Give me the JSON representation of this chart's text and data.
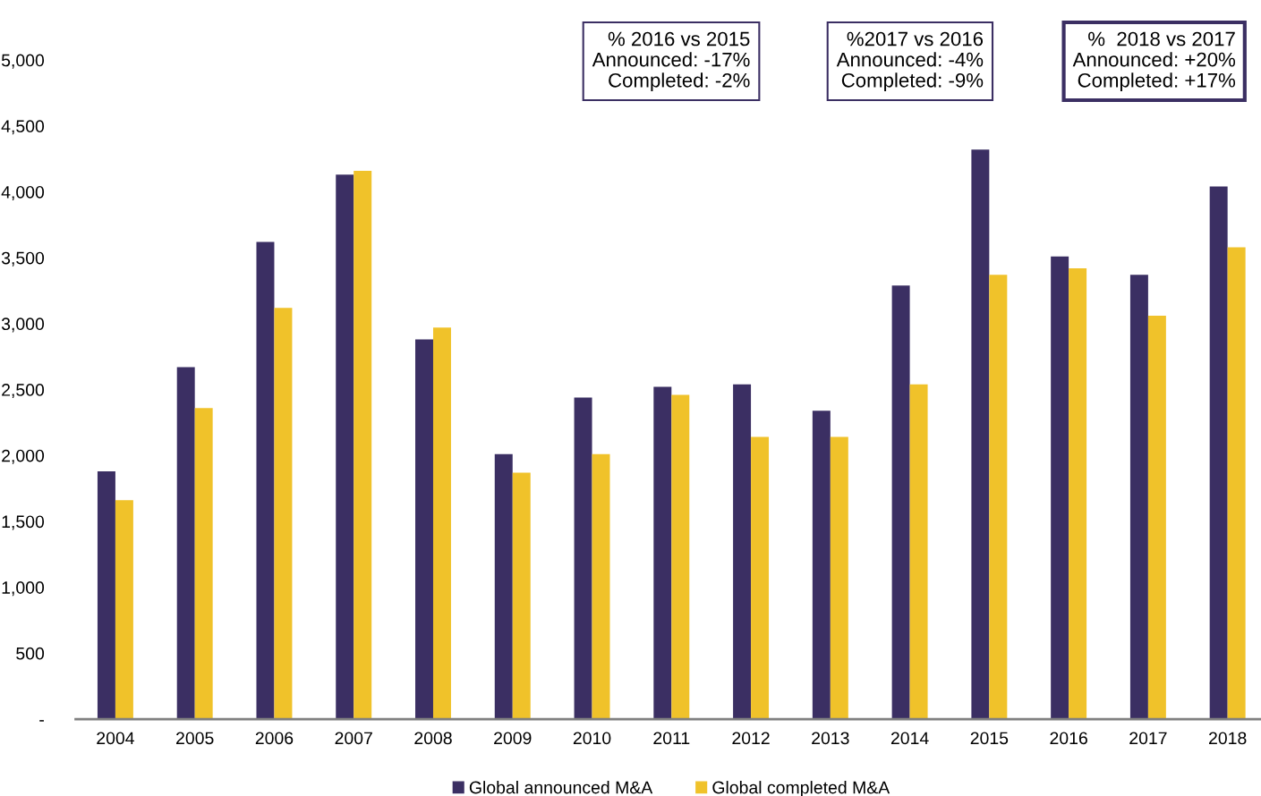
{
  "chart_data": {
    "type": "bar",
    "categories": [
      "2004",
      "2005",
      "2006",
      "2007",
      "2008",
      "2009",
      "2010",
      "2011",
      "2012",
      "2013",
      "2014",
      "2015",
      "2016",
      "2017",
      "2018"
    ],
    "series": [
      {
        "name": "Global announced M&A",
        "color": "#3b2f63",
        "values": [
          1880,
          2670,
          3620,
          4130,
          2880,
          2010,
          2440,
          2520,
          2540,
          2340,
          3290,
          4320,
          3510,
          3370,
          4040
        ]
      },
      {
        "name": "Global completed M&A",
        "color": "#f0c22a",
        "values": [
          1660,
          2360,
          3120,
          4160,
          2970,
          1870,
          2010,
          2460,
          2140,
          2140,
          2540,
          3370,
          3420,
          3060,
          3580
        ]
      }
    ],
    "ylim": [
      0,
      5000
    ],
    "yticks": [
      {
        "value": 0,
        "label": "-"
      },
      {
        "value": 500,
        "label": "500"
      },
      {
        "value": 1000,
        "label": "1,000"
      },
      {
        "value": 1500,
        "label": "1,500"
      },
      {
        "value": 2000,
        "label": "2,000"
      },
      {
        "value": 2500,
        "label": "2,500"
      },
      {
        "value": 3000,
        "label": "3,000"
      },
      {
        "value": 3500,
        "label": "3,500"
      },
      {
        "value": 4000,
        "label": "4,000"
      },
      {
        "value": 4500,
        "label": "4,500"
      },
      {
        "value": 5000,
        "label": "5,000"
      }
    ],
    "grid": false,
    "legend": "bottom",
    "annotations": [
      "% 2016 vs 2015\nAnnounced: -17%\nCompleted: -2%",
      "%2017 vs 2016\nAnnounced: -4%\nCompleted: -9%",
      "%  2018 vs 2017\nAnnounced: +20%\nCompleted: +17%"
    ]
  }
}
